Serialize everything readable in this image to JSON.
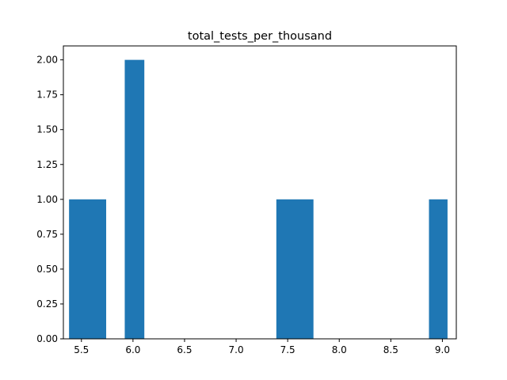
{
  "chart_data": {
    "type": "bar",
    "title": "total_tests_per_thousand",
    "xlabel": "",
    "ylabel": "",
    "xlim": [
      5.325,
      9.135
    ],
    "ylim": [
      0,
      2.1
    ],
    "bar_color": "#1f77b4",
    "grid": false,
    "legend": "none",
    "bins": [
      {
        "x0": 5.38,
        "x1": 5.74,
        "count": 1
      },
      {
        "x0": 5.92,
        "x1": 6.11,
        "count": 2
      },
      {
        "x0": 7.39,
        "x1": 7.75,
        "count": 1
      },
      {
        "x0": 8.87,
        "x1": 9.05,
        "count": 1
      }
    ],
    "x_ticks": [
      {
        "value": 5.5,
        "label": "5.5"
      },
      {
        "value": 6.0,
        "label": "6.0"
      },
      {
        "value": 6.5,
        "label": "6.5"
      },
      {
        "value": 7.0,
        "label": "7.0"
      },
      {
        "value": 7.5,
        "label": "7.5"
      },
      {
        "value": 8.0,
        "label": "8.0"
      },
      {
        "value": 8.5,
        "label": "8.5"
      },
      {
        "value": 9.0,
        "label": "9.0"
      }
    ],
    "y_ticks": [
      {
        "value": 0.0,
        "label": "0.00"
      },
      {
        "value": 0.25,
        "label": "0.25"
      },
      {
        "value": 0.5,
        "label": "0.50"
      },
      {
        "value": 0.75,
        "label": "0.75"
      },
      {
        "value": 1.0,
        "label": "1.00"
      },
      {
        "value": 1.25,
        "label": "1.25"
      },
      {
        "value": 1.5,
        "label": "1.50"
      },
      {
        "value": 1.75,
        "label": "1.75"
      },
      {
        "value": 2.0,
        "label": "2.00"
      }
    ]
  }
}
